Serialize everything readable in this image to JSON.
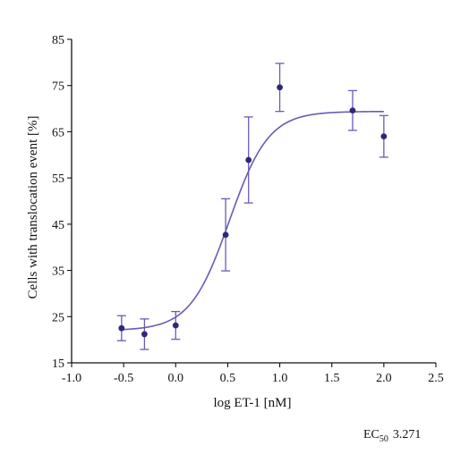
{
  "chart_data": {
    "type": "scatter",
    "title": "",
    "xlabel": "log ET-1 [nM]",
    "ylabel": "Cells with translocation event [%]",
    "xlim": [
      -1.0,
      2.5
    ],
    "ylim": [
      15,
      85
    ],
    "x_ticks": [
      "-1.0",
      "-0.5",
      "0.0",
      "0.5",
      "1.0",
      "1.5",
      "2.0",
      "2.5"
    ],
    "y_ticks": [
      "15",
      "25",
      "35",
      "45",
      "55",
      "65",
      "75",
      "85"
    ],
    "grid": false,
    "point_color": "#2b2a78",
    "curve_color": "#6a5ab8",
    "series": [
      {
        "points": [
          {
            "x": -0.52,
            "y": 22.5,
            "err": 2.7
          },
          {
            "x": -0.3,
            "y": 21.2,
            "err": 3.3
          },
          {
            "x": 0.0,
            "y": 23.1,
            "err": 3.0
          },
          {
            "x": 0.48,
            "y": 42.7,
            "err": 7.8
          },
          {
            "x": 0.7,
            "y": 58.9,
            "err": 9.3
          },
          {
            "x": 1.0,
            "y": 74.6,
            "err": 5.2
          },
          {
            "x": 1.7,
            "y": 69.6,
            "err": 4.3
          },
          {
            "x": 2.0,
            "y": 64.0,
            "err": 4.5
          }
        ]
      }
    ],
    "fit": {
      "model": "sigmoid",
      "bottom": 22.0,
      "top": 69.4,
      "log_ec50": 0.515,
      "hill": 2.3,
      "x_range": [
        -0.52,
        2.0
      ]
    },
    "annotation": {
      "prefix": "EC",
      "subscript": "50",
      "value": "3.271"
    }
  }
}
